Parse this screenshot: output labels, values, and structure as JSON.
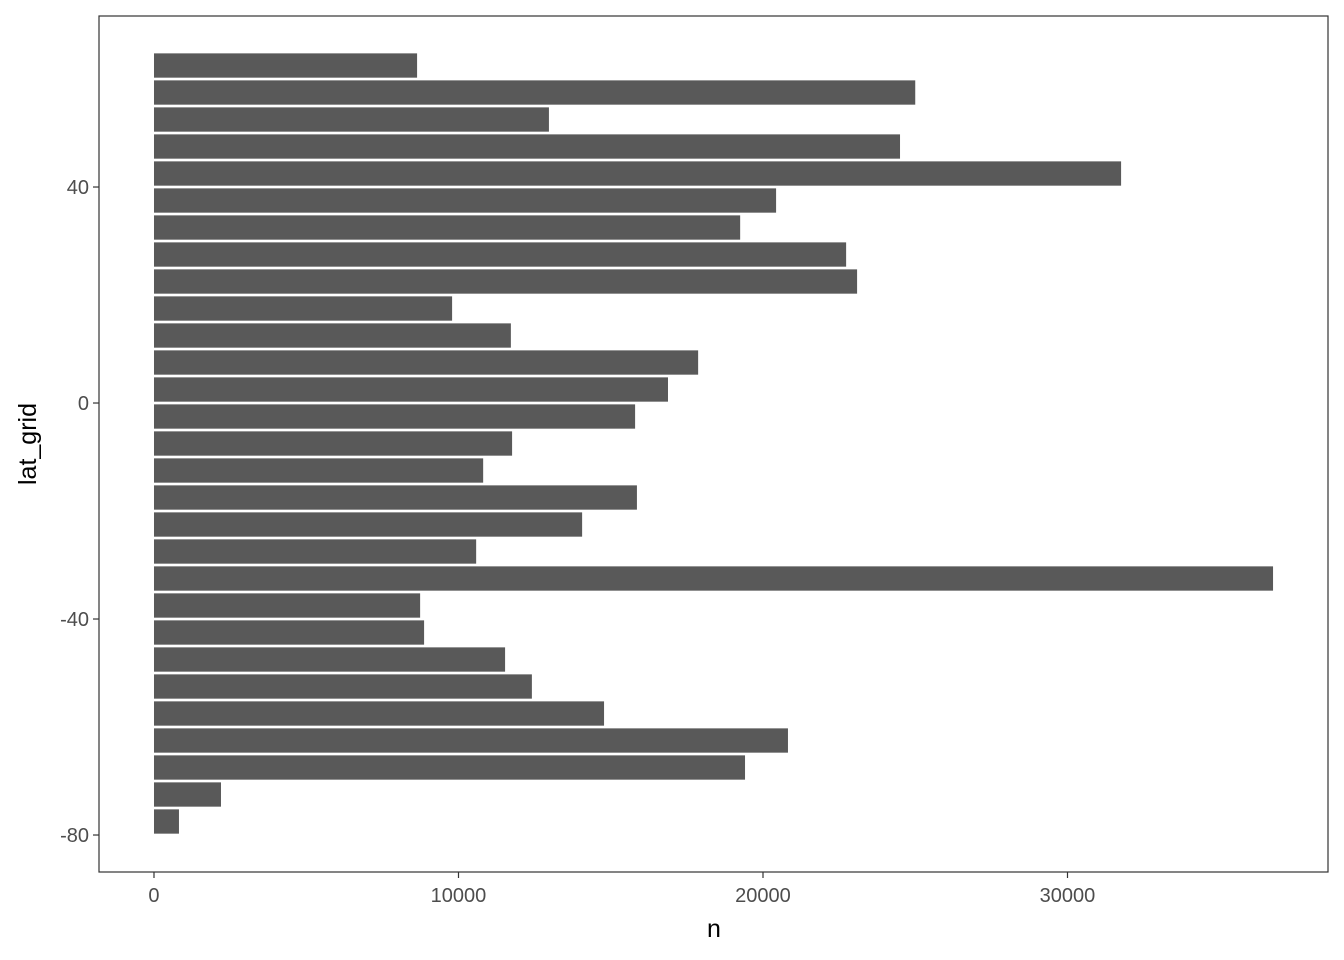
{
  "chart_data": {
    "type": "bar",
    "orientation": "horizontal",
    "x_label": "n",
    "y_label": "lat_grid",
    "y": [
      -77.5,
      -72.5,
      -67.5,
      -62.5,
      -57.5,
      -52.5,
      -47.5,
      -42.5,
      -37.5,
      -32.5,
      -27.5,
      -22.5,
      -17.5,
      -12.5,
      -7.5,
      -2.5,
      2.5,
      7.5,
      12.5,
      17.5,
      22.5,
      27.5,
      32.5,
      37.5,
      42.5,
      47.5,
      52.5,
      57.5,
      62.5
    ],
    "values": [
      820,
      2200,
      19410,
      20820,
      14780,
      12410,
      11530,
      8870,
      8740,
      36750,
      10580,
      14060,
      15860,
      10810,
      11760,
      15800,
      16880,
      17870,
      11720,
      9790,
      23090,
      22730,
      19250,
      20430,
      31760,
      24500,
      12970,
      25000,
      8640
    ],
    "color": "#595959",
    "xlim": [
      -1806,
      38555
    ],
    "xticks": [
      0,
      10000,
      20000,
      30000
    ],
    "ylim": [
      -86.85,
      71.67
    ],
    "yticks": [
      -80,
      -40,
      0,
      40
    ],
    "grid": false
  }
}
